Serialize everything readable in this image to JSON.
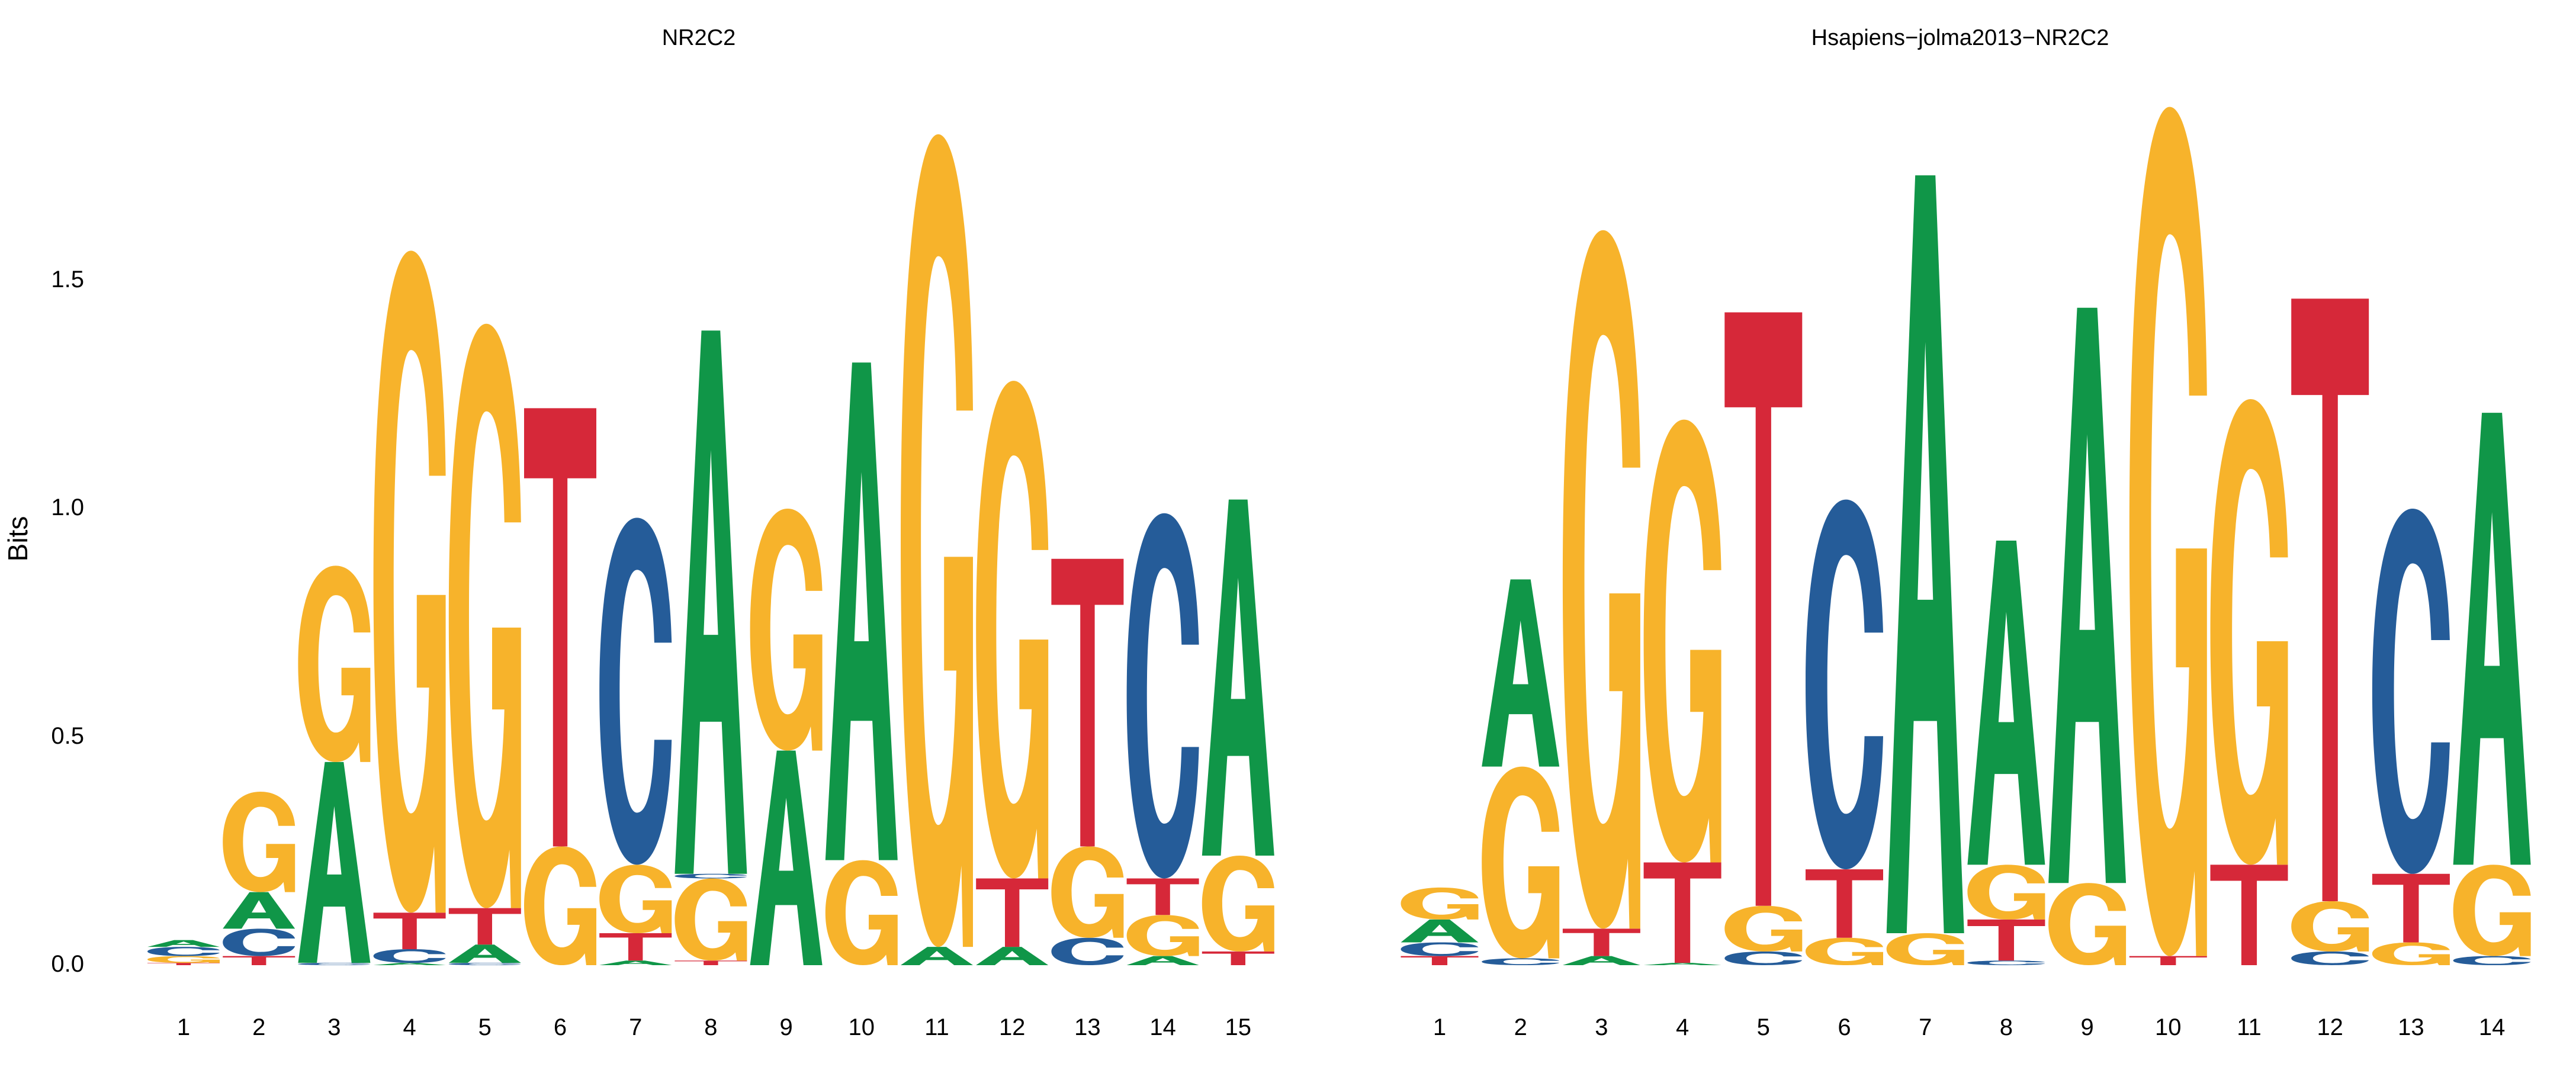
{
  "figure": {
    "y_axis_label": "Bits",
    "y_ticks": [
      "0.0",
      "0.5",
      "1.0",
      "1.5"
    ],
    "y_tick_values": [
      0.0,
      0.5,
      1.0,
      1.5
    ]
  },
  "colors": {
    "A": "#109648",
    "C": "#255C99",
    "G": "#F7B32B",
    "T": "#D62839"
  },
  "chart_data": [
    {
      "type": "sequence-logo",
      "title": "NR2C2",
      "ylabel": "Bits",
      "ylim": [
        0,
        1.9
      ],
      "grid": false,
      "positions": [
        "1",
        "2",
        "3",
        "4",
        "5",
        "6",
        "7",
        "8",
        "9",
        "10",
        "11",
        "12",
        "13",
        "14",
        "15"
      ],
      "stacks": [
        [
          {
            "l": "T",
            "v": 0.005
          },
          {
            "l": "G",
            "v": 0.015
          },
          {
            "l": "C",
            "v": 0.02
          },
          {
            "l": "A",
            "v": 0.015
          }
        ],
        [
          {
            "l": "T",
            "v": 0.02
          },
          {
            "l": "C",
            "v": 0.06
          },
          {
            "l": "A",
            "v": 0.08
          },
          {
            "l": "G",
            "v": 0.22
          }
        ],
        [
          {
            "l": "C",
            "v": 0.005
          },
          {
            "l": "A",
            "v": 0.44
          },
          {
            "l": "G",
            "v": 0.43
          }
        ],
        [
          {
            "l": "A",
            "v": 0.005
          },
          {
            "l": "C",
            "v": 0.03
          },
          {
            "l": "T",
            "v": 0.08
          },
          {
            "l": "G",
            "v": 1.45
          }
        ],
        [
          {
            "l": "C",
            "v": 0.005
          },
          {
            "l": "A",
            "v": 0.04
          },
          {
            "l": "T",
            "v": 0.08
          },
          {
            "l": "G",
            "v": 1.28
          }
        ],
        [
          {
            "l": "G",
            "v": 0.26
          },
          {
            "l": "T",
            "v": 0.96
          }
        ],
        [
          {
            "l": "A",
            "v": 0.01
          },
          {
            "l": "T",
            "v": 0.06
          },
          {
            "l": "G",
            "v": 0.15
          },
          {
            "l": "C",
            "v": 0.76
          }
        ],
        [
          {
            "l": "T",
            "v": 0.01
          },
          {
            "l": "G",
            "v": 0.18
          },
          {
            "l": "C",
            "v": 0.01
          },
          {
            "l": "A",
            "v": 1.19
          }
        ],
        [
          {
            "l": "A",
            "v": 0.47
          },
          {
            "l": "G",
            "v": 0.53
          }
        ],
        [
          {
            "l": "G",
            "v": 0.23
          },
          {
            "l": "A",
            "v": 1.09
          }
        ],
        [
          {
            "l": "A",
            "v": 0.04
          },
          {
            "l": "G",
            "v": 1.78
          }
        ],
        [
          {
            "l": "A",
            "v": 0.04
          },
          {
            "l": "T",
            "v": 0.15
          },
          {
            "l": "G",
            "v": 1.09
          }
        ],
        [
          {
            "l": "C",
            "v": 0.06
          },
          {
            "l": "G",
            "v": 0.2
          },
          {
            "l": "T",
            "v": 0.63
          }
        ],
        [
          {
            "l": "A",
            "v": 0.02
          },
          {
            "l": "G",
            "v": 0.09
          },
          {
            "l": "T",
            "v": 0.08
          },
          {
            "l": "C",
            "v": 0.8
          }
        ],
        [
          {
            "l": "T",
            "v": 0.03
          },
          {
            "l": "G",
            "v": 0.21
          },
          {
            "l": "A",
            "v": 0.78
          }
        ]
      ]
    },
    {
      "type": "sequence-logo",
      "title": "Hsapiens−jolma2013−NR2C2",
      "ylabel": "",
      "ylim": [
        0,
        1.9
      ],
      "grid": false,
      "positions": [
        "1",
        "2",
        "3",
        "4",
        "5",
        "6",
        "7",
        "8",
        "9",
        "10",
        "11",
        "12",
        "13",
        "14"
      ],
      "stacks": [
        [
          {
            "l": "T",
            "v": 0.02
          },
          {
            "l": "C",
            "v": 0.03
          },
          {
            "l": "A",
            "v": 0.05
          },
          {
            "l": "G",
            "v": 0.07
          }
        ],
        [
          {
            "l": "C",
            "v": 0.015
          },
          {
            "l": "G",
            "v": 0.42
          },
          {
            "l": "A",
            "v": 0.41
          }
        ],
        [
          {
            "l": "A",
            "v": 0.02
          },
          {
            "l": "T",
            "v": 0.06
          },
          {
            "l": "G",
            "v": 1.53
          }
        ],
        [
          {
            "l": "A",
            "v": 0.005
          },
          {
            "l": "T",
            "v": 0.22
          },
          {
            "l": "G",
            "v": 0.97
          }
        ],
        [
          {
            "l": "C",
            "v": 0.03
          },
          {
            "l": "G",
            "v": 0.1
          },
          {
            "l": "T",
            "v": 1.3
          }
        ],
        [
          {
            "l": "G",
            "v": 0.06
          },
          {
            "l": "T",
            "v": 0.15
          },
          {
            "l": "C",
            "v": 0.81
          }
        ],
        [
          {
            "l": "G",
            "v": 0.07
          },
          {
            "l": "A",
            "v": 1.66
          }
        ],
        [
          {
            "l": "C",
            "v": 0.01
          },
          {
            "l": "T",
            "v": 0.09
          },
          {
            "l": "G",
            "v": 0.12
          },
          {
            "l": "A",
            "v": 0.71
          }
        ],
        [
          {
            "l": "G",
            "v": 0.18
          },
          {
            "l": "A",
            "v": 1.26
          }
        ],
        [
          {
            "l": "T",
            "v": 0.02
          },
          {
            "l": "G",
            "v": 1.86
          }
        ],
        [
          {
            "l": "T",
            "v": 0.22
          },
          {
            "l": "G",
            "v": 1.02
          }
        ],
        [
          {
            "l": "C",
            "v": 0.03
          },
          {
            "l": "G",
            "v": 0.11
          },
          {
            "l": "T",
            "v": 1.32
          }
        ],
        [
          {
            "l": "G",
            "v": 0.05
          },
          {
            "l": "T",
            "v": 0.15
          },
          {
            "l": "C",
            "v": 0.8
          }
        ],
        [
          {
            "l": "C",
            "v": 0.02
          },
          {
            "l": "G",
            "v": 0.2
          },
          {
            "l": "A",
            "v": 0.99
          }
        ]
      ]
    }
  ]
}
